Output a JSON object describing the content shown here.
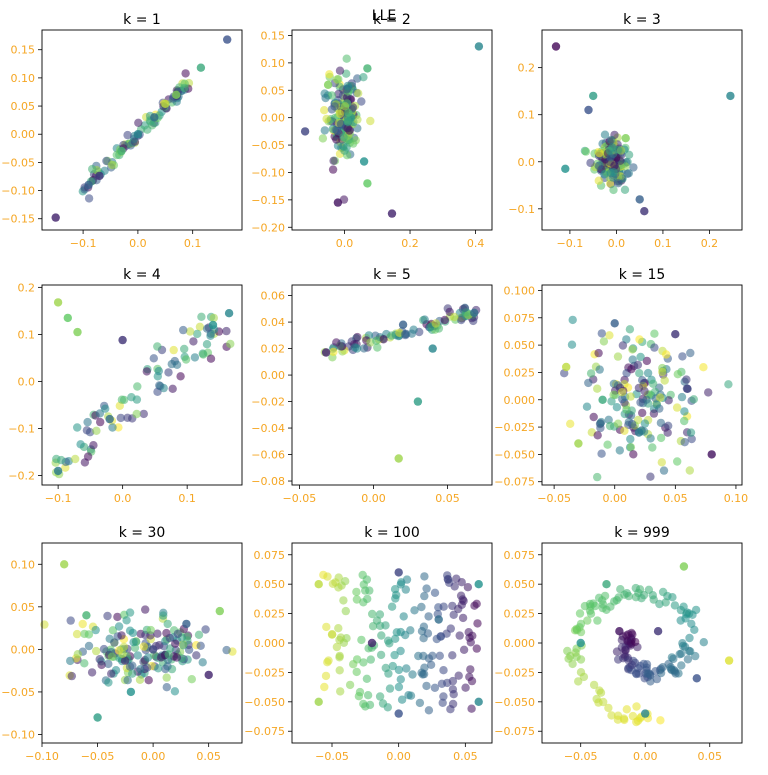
{
  "figure": {
    "suptitle": "LLE",
    "tick_color": "#f5a623",
    "colormap": "viridis",
    "colormap_stops": [
      "#440154",
      "#3b528b",
      "#21918c",
      "#5ec962",
      "#fde725"
    ]
  },
  "chart_data": [
    {
      "type": "scatter",
      "title": "k = 1",
      "xlim": [
        -0.175,
        0.19
      ],
      "ylim": [
        -0.17,
        0.185
      ],
      "xticks": [
        -0.1,
        0.0,
        0.1
      ],
      "xtick_labels": [
        "−0.1",
        "0.0",
        "0.1"
      ],
      "yticks": [
        -0.15,
        -0.1,
        -0.05,
        0.0,
        0.05,
        0.1,
        0.15
      ],
      "ytick_labels": [
        "−0.15",
        "−0.10",
        "−0.05",
        "0.00",
        "0.05",
        "0.10",
        "0.15"
      ],
      "points": [
        [
          -0.15,
          -0.148,
          0.1
        ],
        [
          0.163,
          0.168,
          0.25
        ],
        [
          0.115,
          0.118,
          0.6
        ],
        [
          0.07,
          0.07,
          0.8
        ],
        [
          -0.09,
          -0.09,
          0.3
        ],
        [
          -0.07,
          -0.074,
          0.15
        ],
        [
          0.05,
          0.054,
          0.9
        ],
        [
          0.0,
          0.0,
          0.45
        ],
        [
          -0.03,
          -0.03,
          0.65
        ],
        [
          0.03,
          0.03,
          0.35
        ]
      ],
      "cluster": {
        "shape": "line",
        "from": [
          -0.1,
          -0.1
        ],
        "to": [
          0.1,
          0.1
        ],
        "width": 0.006
      }
    },
    {
      "type": "scatter",
      "title": "k = 2",
      "xlim": [
        -0.16,
        0.45
      ],
      "ylim": [
        -0.205,
        0.16
      ],
      "xticks": [
        0.0,
        0.2,
        0.4
      ],
      "xtick_labels": [
        "0.0",
        "0.2",
        "0.4"
      ],
      "yticks": [
        -0.2,
        -0.15,
        -0.1,
        -0.05,
        0.0,
        0.05,
        0.1,
        0.15
      ],
      "ytick_labels": [
        "−0.20",
        "−0.15",
        "−0.10",
        "−0.05",
        "0.00",
        "0.05",
        "0.10",
        "0.15"
      ],
      "points": [
        [
          0.41,
          0.13,
          0.45
        ],
        [
          -0.02,
          -0.155,
          0.05
        ],
        [
          0.145,
          -0.175,
          0.1
        ],
        [
          -0.12,
          -0.025,
          0.2
        ],
        [
          0.07,
          -0.12,
          0.75
        ],
        [
          0.07,
          0.09,
          0.65
        ],
        [
          0.06,
          -0.08,
          0.5
        ],
        [
          -0.05,
          0.06,
          0.8
        ]
      ],
      "cluster": {
        "shape": "ellipse",
        "cx": 0.0,
        "cy": 0.0,
        "rx": 0.05,
        "ry": 0.07
      }
    },
    {
      "type": "scatter",
      "title": "k = 3",
      "xlim": [
        -0.16,
        0.27
      ],
      "ylim": [
        -0.145,
        0.28
      ],
      "xticks": [
        -0.1,
        0.0,
        0.1,
        0.2
      ],
      "xtick_labels": [
        "−0.1",
        "0.0",
        "0.1",
        "0.2"
      ],
      "yticks": [
        -0.1,
        0.0,
        0.1,
        0.2
      ],
      "ytick_labels": [
        "−0.1",
        "0.0",
        "0.1",
        "0.2"
      ],
      "points": [
        [
          -0.13,
          0.245,
          0.02
        ],
        [
          0.245,
          0.14,
          0.45
        ],
        [
          -0.11,
          -0.015,
          0.5
        ],
        [
          0.06,
          -0.105,
          0.15
        ],
        [
          -0.05,
          0.14,
          0.55
        ],
        [
          -0.06,
          0.11,
          0.25
        ],
        [
          0.02,
          0.05,
          0.8
        ],
        [
          0.05,
          -0.08,
          0.3
        ]
      ],
      "cluster": {
        "shape": "ellipse",
        "cx": -0.01,
        "cy": 0.0,
        "rx": 0.035,
        "ry": 0.05
      }
    },
    {
      "type": "scatter",
      "title": "k = 4",
      "xlim": [
        -0.125,
        0.185
      ],
      "ylim": [
        -0.22,
        0.205
      ],
      "xticks": [
        -0.1,
        0.0,
        0.1
      ],
      "xtick_labels": [
        "−0.1",
        "0.0",
        "0.1"
      ],
      "yticks": [
        -0.2,
        -0.1,
        0.0,
        0.1,
        0.2
      ],
      "ytick_labels": [
        "−0.2",
        "−0.1",
        "0.0",
        "0.1",
        "0.2"
      ],
      "points": [
        [
          -0.1,
          0.168,
          0.85
        ],
        [
          -0.085,
          0.135,
          0.75
        ],
        [
          -0.07,
          0.105,
          0.8
        ],
        [
          -0.1,
          -0.19,
          0.4
        ],
        [
          0.165,
          0.145,
          0.45
        ],
        [
          0.0,
          0.088,
          0.15
        ],
        [
          0.14,
          0.12,
          0.5
        ],
        [
          -0.02,
          -0.08,
          0.35
        ]
      ],
      "cluster": {
        "shape": "line",
        "from": [
          -0.1,
          -0.19
        ],
        "to": [
          0.16,
          0.14
        ],
        "width": 0.02
      }
    },
    {
      "type": "scatter",
      "title": "k = 5",
      "xlim": [
        -0.055,
        0.08
      ],
      "ylim": [
        -0.083,
        0.068
      ],
      "xticks": [
        -0.05,
        0.0,
        0.05
      ],
      "xtick_labels": [
        "−0.05",
        "0.00",
        "0.05"
      ],
      "yticks": [
        -0.08,
        -0.06,
        -0.04,
        -0.02,
        0.0,
        0.02,
        0.04,
        0.06
      ],
      "ytick_labels": [
        "−0.08",
        "−0.06",
        "−0.04",
        "−0.02",
        "0.00",
        "0.02",
        "0.04",
        "0.06"
      ],
      "points": [
        [
          -0.032,
          0.017,
          0.1
        ],
        [
          0.068,
          0.047,
          0.35
        ],
        [
          0.017,
          -0.063,
          0.85
        ],
        [
          0.02,
          0.038,
          0.3
        ],
        [
          0.03,
          -0.02,
          0.55
        ],
        [
          0.04,
          0.02,
          0.45
        ]
      ],
      "cluster": {
        "shape": "line",
        "from": [
          -0.03,
          0.017
        ],
        "to": [
          0.068,
          0.047
        ],
        "width": 0.003
      }
    },
    {
      "type": "scatter",
      "title": "k = 15",
      "xlim": [
        -0.06,
        0.105
      ],
      "ylim": [
        -0.078,
        0.105
      ],
      "xticks": [
        -0.05,
        0.0,
        0.05,
        0.1
      ],
      "xtick_labels": [
        "−0.05",
        "0.00",
        "0.05",
        "0.10"
      ],
      "yticks": [
        -0.075,
        -0.05,
        -0.025,
        0.0,
        0.025,
        0.05,
        0.075,
        0.1
      ],
      "ytick_labels": [
        "−0.075",
        "−0.050",
        "−0.025",
        "0.000",
        "0.025",
        "0.050",
        "0.075",
        "0.100"
      ],
      "points": [
        [
          -0.04,
          0.03,
          0.9
        ],
        [
          -0.03,
          -0.04,
          0.85
        ],
        [
          0.0,
          0.07,
          0.3
        ],
        [
          0.05,
          0.06,
          0.15
        ],
        [
          0.08,
          -0.05,
          0.05
        ],
        [
          0.02,
          -0.03,
          0.4
        ],
        [
          -0.01,
          0.0,
          0.6
        ],
        [
          0.06,
          0.01,
          0.2
        ]
      ],
      "cluster": {
        "shape": "ellipse",
        "cx": 0.02,
        "cy": 0.0,
        "rx": 0.055,
        "ry": 0.06
      }
    },
    {
      "type": "scatter",
      "title": "k = 30",
      "xlim": [
        -0.1,
        0.08
      ],
      "ylim": [
        -0.11,
        0.125
      ],
      "xticks": [
        -0.1,
        -0.05,
        0.0,
        0.05
      ],
      "xtick_labels": [
        "−0.10",
        "−0.05",
        "0.00",
        "0.05"
      ],
      "yticks": [
        -0.1,
        -0.05,
        0.0,
        0.05,
        0.1
      ],
      "ytick_labels": [
        "−0.10",
        "−0.05",
        "0.00",
        "0.05",
        "0.10"
      ],
      "points": [
        [
          -0.08,
          0.1,
          0.85
        ],
        [
          0.06,
          0.045,
          0.8
        ],
        [
          -0.05,
          -0.08,
          0.55
        ],
        [
          0.0,
          0.0,
          0.2
        ],
        [
          -0.06,
          0.04,
          0.65
        ],
        [
          0.03,
          0.03,
          0.3
        ],
        [
          0.05,
          -0.03,
          0.1
        ],
        [
          -0.02,
          -0.05,
          0.5
        ]
      ],
      "cluster": {
        "shape": "ellipse",
        "cx": -0.01,
        "cy": 0.0,
        "rx": 0.06,
        "ry": 0.04
      }
    },
    {
      "type": "scatter",
      "title": "k = 100",
      "xlim": [
        -0.08,
        0.07
      ],
      "ylim": [
        -0.085,
        0.085
      ],
      "xticks": [
        -0.05,
        0.0,
        0.05
      ],
      "xtick_labels": [
        "−0.05",
        "0.00",
        "0.05"
      ],
      "yticks": [
        -0.075,
        -0.05,
        -0.025,
        0.0,
        0.025,
        0.05,
        0.075
      ],
      "ytick_labels": [
        "−0.075",
        "−0.050",
        "−0.025",
        "0.000",
        "0.025",
        "0.050",
        "0.075"
      ],
      "points": [
        [
          -0.06,
          0.05,
          0.9
        ],
        [
          -0.06,
          -0.05,
          0.85
        ],
        [
          0.06,
          0.05,
          0.5
        ],
        [
          0.06,
          -0.05,
          0.45
        ],
        [
          0.0,
          0.06,
          0.2
        ],
        [
          0.0,
          -0.06,
          0.25
        ],
        [
          -0.02,
          0.0,
          0.1
        ],
        [
          0.03,
          0.02,
          0.35
        ]
      ],
      "cluster": {
        "shape": "rect",
        "x0": -0.06,
        "x1": 0.06,
        "y0": -0.06,
        "y1": 0.06
      }
    },
    {
      "type": "scatter",
      "title": "k = 999",
      "xlim": [
        -0.08,
        0.075
      ],
      "ylim": [
        -0.085,
        0.085
      ],
      "xticks": [
        -0.05,
        0.0,
        0.05
      ],
      "xtick_labels": [
        "−0.05",
        "0.00",
        "0.05"
      ],
      "yticks": [
        -0.075,
        -0.05,
        -0.025,
        0.0,
        0.025,
        0.05,
        0.075
      ],
      "ytick_labels": [
        "−0.075",
        "−0.050",
        "−0.025",
        "0.000",
        "0.025",
        "0.050",
        "0.075"
      ],
      "points": [
        [
          -0.02,
          0.01,
          0.05
        ],
        [
          0.065,
          -0.015,
          0.95
        ],
        [
          0.0,
          -0.06,
          0.45
        ],
        [
          -0.05,
          0.0,
          0.5
        ],
        [
          0.03,
          0.065,
          0.8
        ],
        [
          -0.03,
          0.05,
          0.6
        ],
        [
          0.04,
          -0.03,
          0.25
        ],
        [
          0.01,
          0.01,
          0.15
        ]
      ],
      "cluster": {
        "shape": "spiral",
        "cx": 0.0,
        "cy": 0.0,
        "r0": 0.01,
        "r1": 0.065,
        "turns": 1.4
      }
    }
  ]
}
